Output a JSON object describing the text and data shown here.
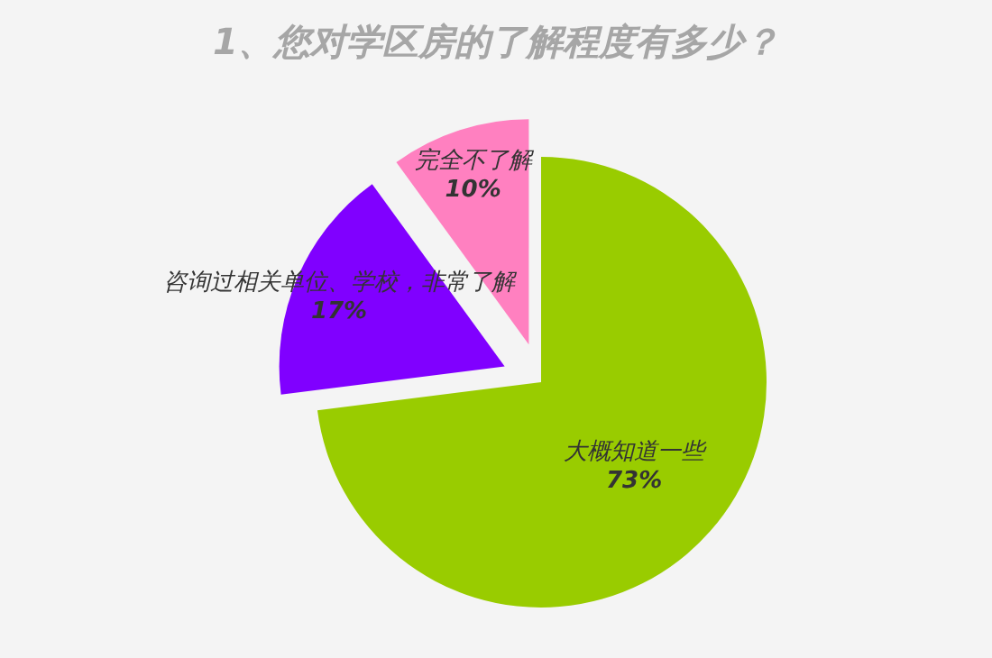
{
  "chart_data": {
    "type": "pie",
    "title": "1、您对学区房的了解程度有多少？",
    "categories": [
      "大概知道一些",
      "咨询过相关单位、学校，非常了解",
      "完全不了解"
    ],
    "values": [
      73,
      17,
      10
    ],
    "value_labels": [
      "73%",
      "17%",
      "10%"
    ],
    "colors": [
      "#99cc00",
      "#8000ff",
      "#ff80c0"
    ]
  }
}
